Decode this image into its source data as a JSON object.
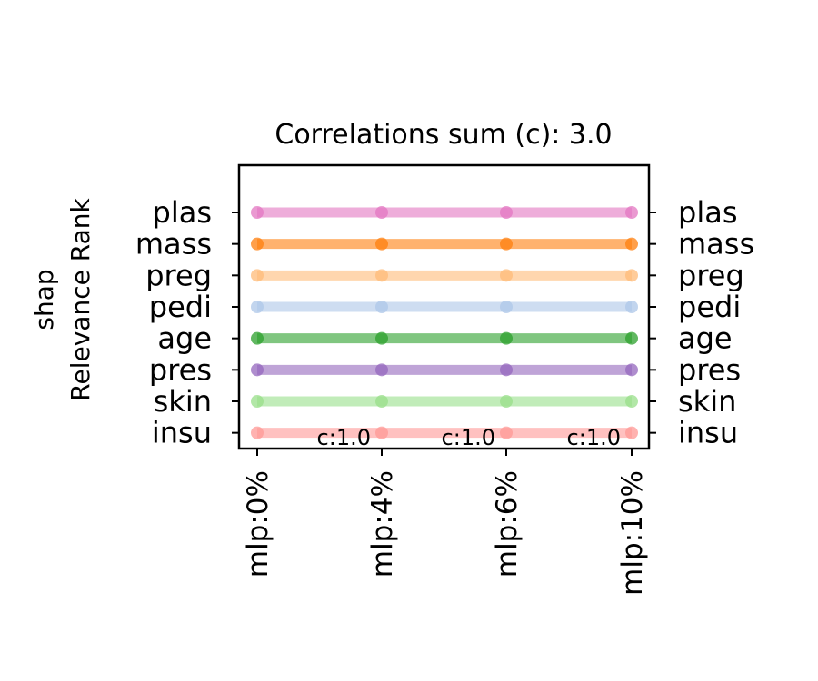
{
  "chart_data": {
    "type": "line",
    "title": "Correlations sum (c): 3.0",
    "ylabel_line1": "shap",
    "ylabel_line2": "Relevance Rank",
    "xlabel": "",
    "categories": [
      "mlp:0%",
      "mlp:4%",
      "mlp:6%",
      "mlp:10%"
    ],
    "annotations": [
      "",
      "c:1.0",
      "c:1.0",
      "c:1.0"
    ],
    "rank_labels": [
      "plas",
      "mass",
      "preg",
      "pedi",
      "age",
      "pres",
      "skin",
      "insu"
    ],
    "ylim": [
      0.5,
      9.5
    ],
    "series": [
      {
        "name": "plas",
        "color": "#e377c2",
        "values": [
          8,
          8,
          8,
          8
        ]
      },
      {
        "name": "mass",
        "color": "#ff7f0e",
        "values": [
          7,
          7,
          7,
          7
        ]
      },
      {
        "name": "preg",
        "color": "#ffbb78",
        "values": [
          6,
          6,
          6,
          6
        ]
      },
      {
        "name": "pedi",
        "color": "#aec7e8",
        "values": [
          5,
          5,
          5,
          5
        ]
      },
      {
        "name": "age",
        "color": "#2ca02c",
        "values": [
          4,
          4,
          4,
          4
        ]
      },
      {
        "name": "pres",
        "color": "#9467bd",
        "values": [
          3,
          3,
          3,
          3
        ]
      },
      {
        "name": "skin",
        "color": "#98df8a",
        "values": [
          2,
          2,
          2,
          2
        ]
      },
      {
        "name": "insu",
        "color": "#ff9896",
        "values": [
          1,
          1,
          1,
          1
        ]
      }
    ],
    "grid": false,
    "legend": "none"
  }
}
